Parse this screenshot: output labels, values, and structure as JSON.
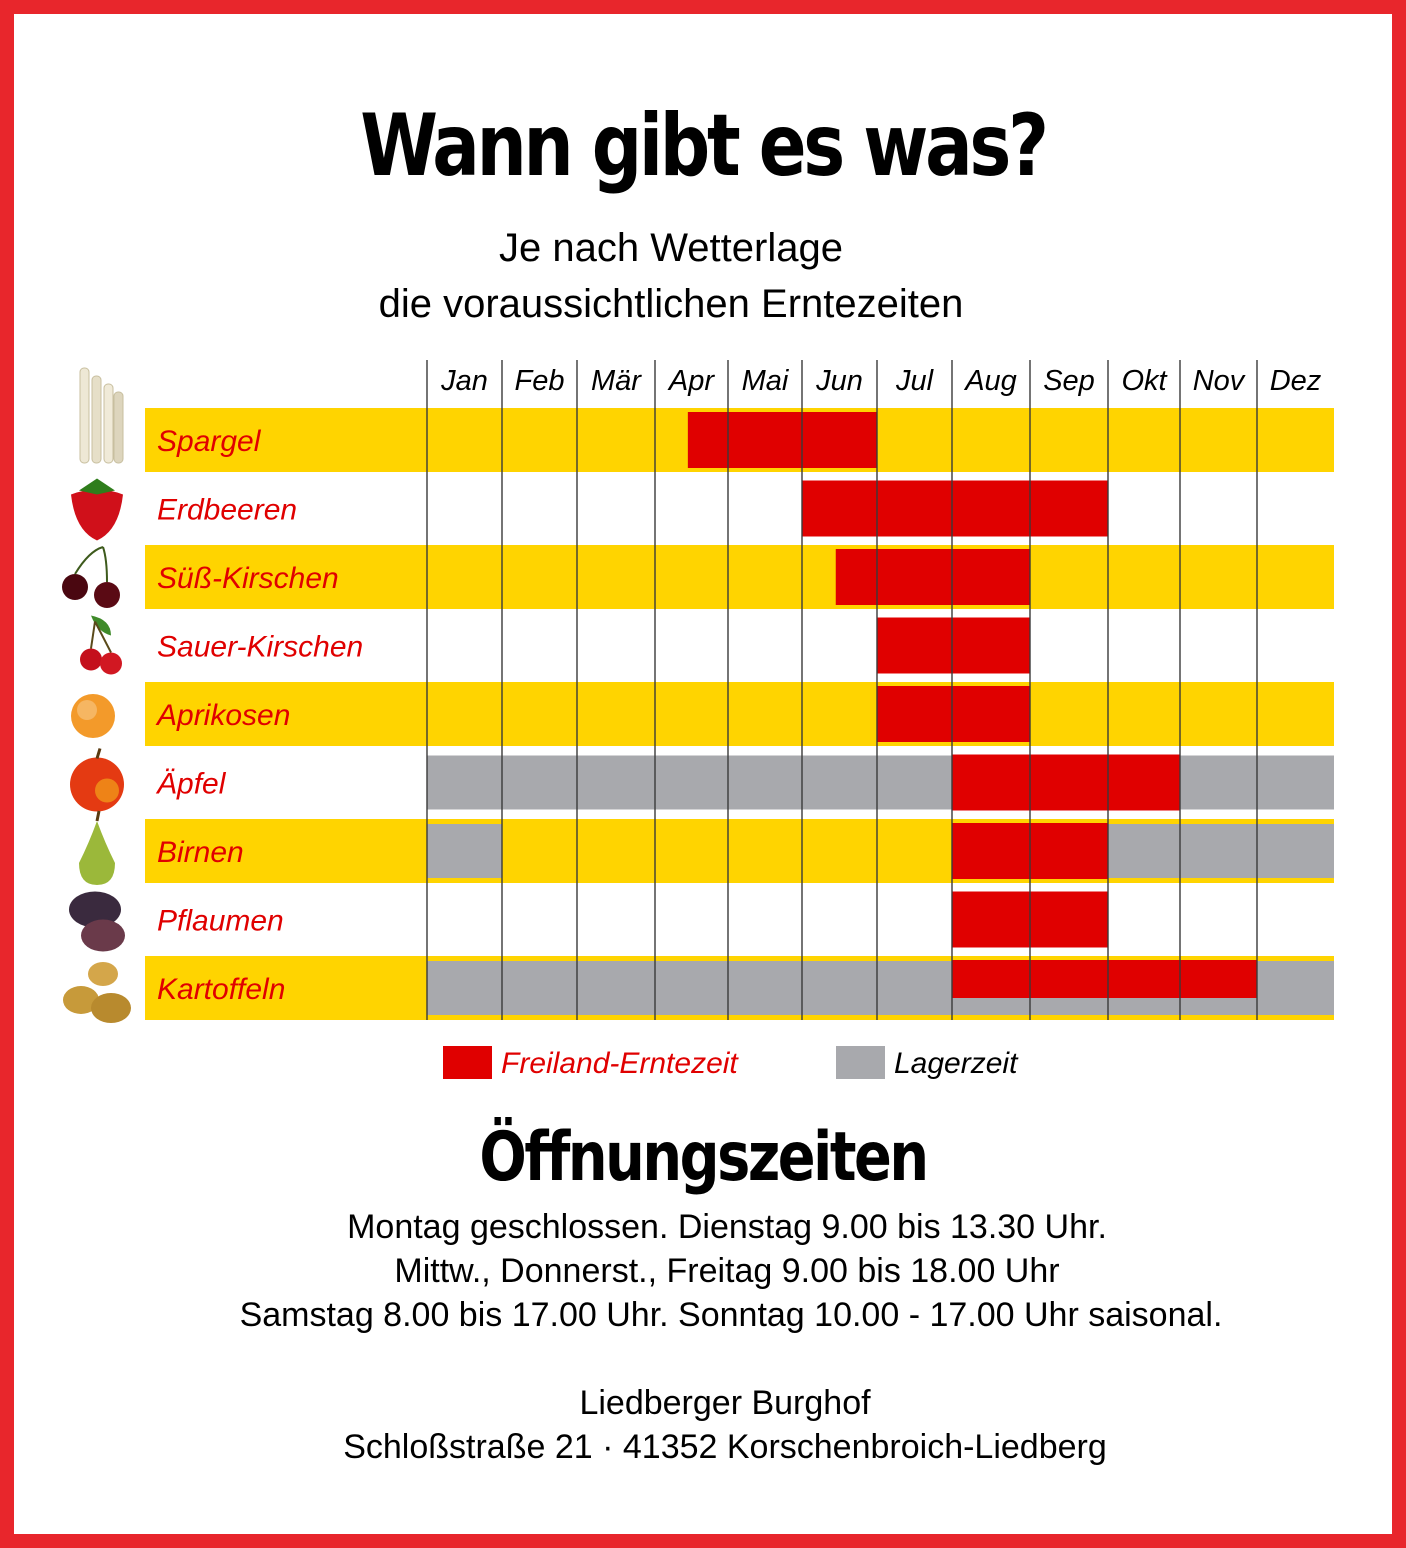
{
  "title": "Wann gibt es was?",
  "subtitle": {
    "line1": "Je nach Wetterlage",
    "line2": "die voraussichtlichen Erntezeiten"
  },
  "colors": {
    "frame": "#e8262c",
    "band_yellow": "#ffd400",
    "harvest_red": "#e00000",
    "storage_grey": "#a8a9ad",
    "crop_label": "#e00000"
  },
  "chart_data": {
    "type": "gantt",
    "months": [
      "Jan",
      "Feb",
      "Mär",
      "Apr",
      "Mai",
      "Jun",
      "Jul",
      "Aug",
      "Sep",
      "Okt",
      "Nov",
      "Dez"
    ],
    "crops": [
      {
        "name": "Spargel",
        "icon": "asparagus-icon",
        "storage": [],
        "harvest": [
          [
            3.45,
            6.0
          ]
        ]
      },
      {
        "name": "Erdbeeren",
        "icon": "strawberry-icon",
        "storage": [],
        "harvest": [
          [
            5.0,
            9.0
          ]
        ]
      },
      {
        "name": "Süß-Kirschen",
        "icon": "cherries-icon",
        "storage": [],
        "harvest": [
          [
            5.45,
            8.0
          ]
        ]
      },
      {
        "name": "Sauer-Kirschen",
        "icon": "sour-cherries-icon",
        "storage": [],
        "harvest": [
          [
            6.0,
            8.0
          ]
        ]
      },
      {
        "name": "Aprikosen",
        "icon": "apricot-icon",
        "storage": [],
        "harvest": [
          [
            6.0,
            8.0
          ]
        ]
      },
      {
        "name": "Äpfel",
        "icon": "apple-icon",
        "storage": [
          [
            0.0,
            7.0
          ],
          [
            10.0,
            12.0
          ]
        ],
        "harvest": [
          [
            7.0,
            10.0
          ]
        ]
      },
      {
        "name": "Birnen",
        "icon": "pear-icon",
        "storage": [
          [
            0.0,
            1.0
          ],
          [
            9.0,
            12.0
          ]
        ],
        "harvest": [
          [
            7.0,
            9.0
          ]
        ]
      },
      {
        "name": "Pflaumen",
        "icon": "plums-icon",
        "storage": [],
        "harvest": [
          [
            7.0,
            9.0
          ]
        ]
      },
      {
        "name": "Kartoffeln",
        "icon": "potatoes-icon",
        "storage": [
          [
            0.0,
            12.0
          ]
        ],
        "harvest": [
          [
            7.0,
            11.0
          ]
        ]
      }
    ],
    "legend": [
      {
        "label": "Freiland-Erntezeit",
        "color": "#e00000"
      },
      {
        "label": "Lagerzeit",
        "color": "#a8a9ad"
      }
    ]
  },
  "hours": {
    "title": "Öffnungszeiten",
    "lines": [
      "Montag geschlossen. Dienstag  9.00 bis 13.30 Uhr.",
      "Mittw., Donnerst., Freitag 9.00 bis 18.00 Uhr",
      "Samstag 8.00 bis 17.00 Uhr. Sonntag 10.00 - 17.00 Uhr saisonal."
    ]
  },
  "address": {
    "name": "Liedberger Burghof",
    "street": "Schloßstraße 21 · 41352 Korschenbroich-Liedberg"
  }
}
